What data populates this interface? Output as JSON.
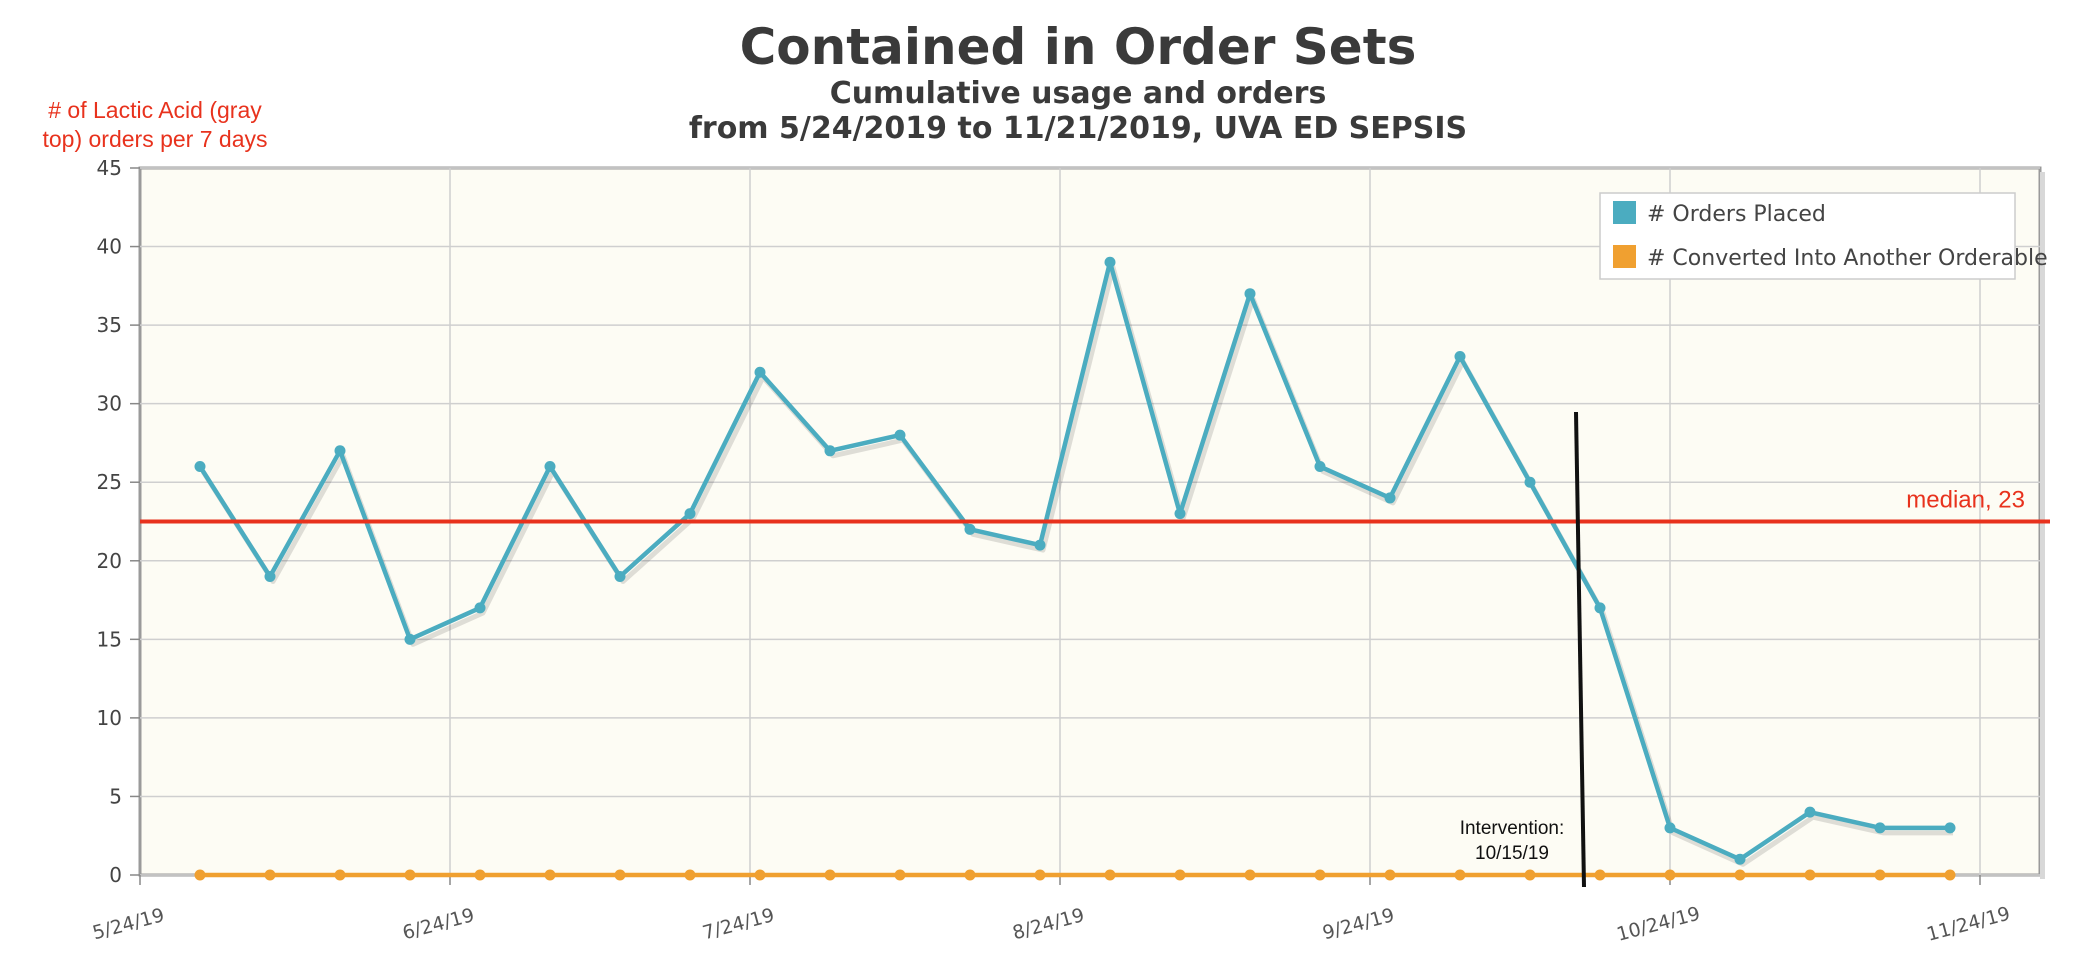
{
  "chart_data": {
    "type": "line",
    "title": "Contained in Order Sets",
    "subtitle_line1": "Cumulative usage and orders",
    "subtitle_line2": "from 5/24/2019 to 11/21/2019, UVA ED SEPSIS",
    "ylabel_line1": "# of Lactic Acid (gray",
    "ylabel_line2": "top) orders per 7 days",
    "ylim": [
      0,
      45
    ],
    "y_ticks": [
      "0",
      "5",
      "10",
      "15",
      "20",
      "25",
      "30",
      "35",
      "40",
      "45"
    ],
    "x_ticks": [
      "5/24/19",
      "6/24/19",
      "7/24/19",
      "8/24/19",
      "9/24/19",
      "10/24/19",
      "11/24/19"
    ],
    "x_start": "2019-05-24",
    "x_end": "2019-11-30",
    "grid": true,
    "legend_position": "top-right",
    "series": [
      {
        "name": "# Orders Placed",
        "color": "#4bacc0",
        "dates": [
          "2019-05-30",
          "2019-06-06",
          "2019-06-13",
          "2019-06-20",
          "2019-06-27",
          "2019-07-04",
          "2019-07-11",
          "2019-07-18",
          "2019-07-25",
          "2019-08-01",
          "2019-08-08",
          "2019-08-15",
          "2019-08-22",
          "2019-08-29",
          "2019-09-05",
          "2019-09-12",
          "2019-09-19",
          "2019-09-26",
          "2019-10-03",
          "2019-10-10",
          "2019-10-17",
          "2019-10-24",
          "2019-10-31",
          "2019-11-07",
          "2019-11-14",
          "2019-11-21"
        ],
        "values": [
          26,
          19,
          27,
          15,
          17,
          26,
          19,
          23,
          32,
          27,
          28,
          22,
          21,
          39,
          23,
          37,
          26,
          24,
          33,
          25,
          17,
          3,
          1,
          4,
          3,
          3
        ]
      },
      {
        "name": "# Converted Into Another Orderable",
        "color": "#f0a030",
        "dates": [
          "2019-05-30",
          "2019-06-06",
          "2019-06-13",
          "2019-06-20",
          "2019-06-27",
          "2019-07-04",
          "2019-07-11",
          "2019-07-18",
          "2019-07-25",
          "2019-08-01",
          "2019-08-08",
          "2019-08-15",
          "2019-08-22",
          "2019-08-29",
          "2019-09-05",
          "2019-09-12",
          "2019-09-19",
          "2019-09-26",
          "2019-10-03",
          "2019-10-10",
          "2019-10-17",
          "2019-10-24",
          "2019-10-31",
          "2019-11-07",
          "2019-11-14",
          "2019-11-21"
        ],
        "values": [
          0,
          0,
          0,
          0,
          0,
          0,
          0,
          0,
          0,
          0,
          0,
          0,
          0,
          0,
          0,
          0,
          0,
          0,
          0,
          0,
          0,
          0,
          0,
          0,
          0,
          0
        ]
      }
    ],
    "median": {
      "value": 22.5,
      "label": "median, 23",
      "color": "#e8321d"
    },
    "intervention": {
      "label_line1": "Intervention:",
      "label_line2": "10/15/19",
      "date": "2019-10-15"
    }
  }
}
